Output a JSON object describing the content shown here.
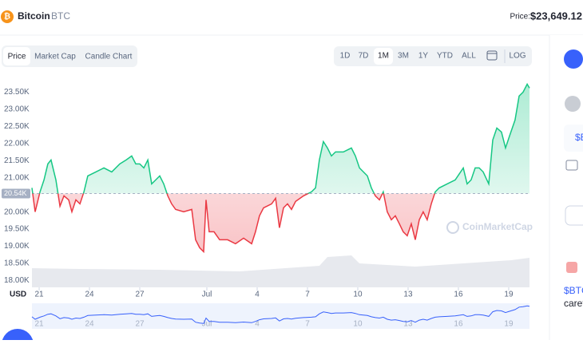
{
  "header": {
    "name": "Bitcoin",
    "symbol": "BTC",
    "price_label": "Price:",
    "price": "$23,649.12"
  },
  "tabs": [
    "Price",
    "Market Cap",
    "Candle Chart"
  ],
  "ranges": [
    "1D",
    "7D",
    "1M",
    "3M",
    "1Y",
    "YTD",
    "ALL",
    "LOG"
  ],
  "side_panel": {
    "texts": [
      "$B",
      "$BTC",
      "caref"
    ]
  },
  "chart_data": {
    "type": "line",
    "x": [
      20.57,
      20.76,
      21.05,
      21.29,
      21.52,
      21.71,
      22.0,
      22.24,
      22.48,
      22.76,
      22.95,
      23.19,
      23.43,
      23.67,
      23.9,
      24.38,
      24.86,
      25.33,
      25.81,
      26.19,
      26.52,
      26.76,
      27.0,
      27.24,
      27.48,
      27.71,
      27.95,
      28.19,
      28.43,
      28.67,
      28.9,
      29.14,
      29.62,
      30.1,
      30.33,
      30.57,
      30.81,
      30.95,
      31.14,
      31.43,
      31.76,
      32.24,
      32.71,
      33.19,
      33.67,
      33.9,
      34.14,
      34.38,
      34.86,
      35.1,
      35.33,
      35.57,
      35.81,
      36.05,
      36.29,
      36.76,
      37.24,
      37.48,
      37.71,
      37.95,
      38.19,
      38.43,
      38.67,
      39.14,
      39.62,
      39.86,
      40.1,
      40.57,
      40.81,
      41.05,
      41.29,
      41.52,
      41.76,
      42.0,
      42.24,
      42.48,
      42.71,
      42.95,
      43.19,
      43.43,
      43.67,
      43.9,
      44.14,
      44.38,
      44.62,
      44.86,
      45.33,
      45.81,
      46.29,
      46.52,
      46.76,
      47.0,
      47.24,
      47.48,
      47.81,
      48.05,
      48.29,
      48.57,
      48.81,
      49.05,
      49.38,
      49.62,
      49.86,
      50.1,
      50.24
    ],
    "values": [
      20704,
      20005,
      20587,
      20937,
      21403,
      21520,
      20937,
      20168,
      20471,
      20354,
      20005,
      20354,
      20238,
      20587,
      21054,
      21170,
      21287,
      21170,
      21403,
      21520,
      21636,
      21403,
      21403,
      21287,
      21520,
      20821,
      20937,
      21054,
      20821,
      20471,
      20238,
      20075,
      20005,
      20075,
      19189,
      18956,
      18839,
      20354,
      19422,
      19422,
      19189,
      19189,
      19072,
      19235,
      19072,
      19422,
      19888,
      20121,
      20238,
      20401,
      19538,
      20121,
      20238,
      20075,
      20308,
      20471,
      20587,
      20704,
      21520,
      22056,
      21869,
      21636,
      21753,
      21753,
      21869,
      21636,
      21287,
      21054,
      20704,
      20471,
      20354,
      20587,
      20005,
      19772,
      19888,
      19655,
      19422,
      19305,
      19655,
      19189,
      19772,
      20005,
      19772,
      20238,
      20587,
      20704,
      20821,
      20937,
      21287,
      20821,
      20937,
      21287,
      21287,
      21170,
      20821,
      22103,
      22452,
      22336,
      21869,
      22219,
      22685,
      23385,
      23501,
      23734,
      23618
    ],
    "colors": {
      "above": "#16c784",
      "below": "#ea3943"
    },
    "baseline": {
      "value": 20540,
      "label": "20.54K"
    },
    "y_axis_label": "USD",
    "watermark": "CoinMarketCap",
    "xlim": [
      20.57,
      50.24
    ],
    "xticks": [
      21,
      24,
      27,
      {
        "value": 31,
        "label": "Jul"
      },
      {
        "value": 34,
        "label": "4"
      },
      {
        "value": 37,
        "label": "7"
      },
      {
        "value": 40,
        "label": "10"
      },
      {
        "value": 43,
        "label": "13"
      },
      {
        "value": 46,
        "label": "16"
      },
      {
        "value": 49,
        "label": "19"
      }
    ],
    "ylim": [
      17800,
      24000
    ],
    "yticks": [
      {
        "value": 18000,
        "label": "18.00K"
      },
      {
        "value": 18500,
        "label": "18.50K"
      },
      {
        "value": 19000,
        "label": "19.00K"
      },
      {
        "value": 19500,
        "label": "19.50K"
      },
      {
        "value": 20000,
        "label": "20.00K"
      },
      {
        "value": 20500,
        "label": "20.50K"
      },
      {
        "value": 21000,
        "label": "21.00K"
      },
      {
        "value": 21500,
        "label": "21.50K"
      },
      {
        "value": 22000,
        "label": "22.00K"
      },
      {
        "value": 22500,
        "label": "22.50K"
      },
      {
        "value": 23000,
        "label": "23.00K"
      },
      {
        "value": 23500,
        "label": "23.50K"
      }
    ]
  }
}
